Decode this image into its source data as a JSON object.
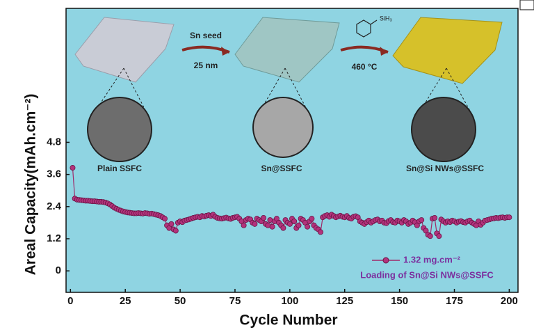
{
  "chart_data": {
    "type": "line",
    "xlabel": "Cycle Number",
    "ylabel": "Areal Capacity(mAh.cm⁻²)",
    "annotations": [
      "Sn seed",
      "25 nm",
      "SiH₃",
      "460 °C",
      "Plain SSFC",
      "Sn@SSFC",
      "Sn@Si NWs@SSFC",
      "Loading of Sn@Si NWs@SSFC"
    ],
    "xlim": [
      -2,
      204
    ],
    "ylim": [
      -0.8,
      9.8
    ],
    "xticks": [
      0,
      25,
      50,
      75,
      100,
      125,
      150,
      175,
      200
    ],
    "yticks": [
      0,
      1.2,
      2.4,
      3.6,
      4.8
    ],
    "grid": false,
    "x": [
      1,
      2,
      3,
      4,
      5,
      6,
      7,
      8,
      9,
      10,
      11,
      12,
      13,
      14,
      15,
      16,
      17,
      18,
      19,
      20,
      21,
      22,
      23,
      24,
      25,
      26,
      27,
      28,
      29,
      30,
      31,
      32,
      33,
      34,
      35,
      36,
      37,
      38,
      39,
      40,
      41,
      42,
      43,
      44,
      45,
      46,
      47,
      48,
      49,
      50,
      51,
      52,
      53,
      54,
      55,
      56,
      57,
      58,
      59,
      60,
      61,
      62,
      63,
      64,
      65,
      66,
      67,
      68,
      69,
      70,
      71,
      72,
      73,
      74,
      75,
      76,
      77,
      78,
      79,
      80,
      81,
      82,
      83,
      84,
      85,
      86,
      87,
      88,
      89,
      90,
      91,
      92,
      93,
      94,
      95,
      96,
      97,
      98,
      99,
      100,
      101,
      102,
      103,
      104,
      105,
      106,
      107,
      108,
      109,
      110,
      111,
      112,
      113,
      114,
      115,
      116,
      117,
      118,
      119,
      120,
      121,
      122,
      123,
      124,
      125,
      126,
      127,
      128,
      129,
      130,
      131,
      132,
      133,
      134,
      135,
      136,
      137,
      138,
      139,
      140,
      141,
      142,
      143,
      144,
      145,
      146,
      147,
      148,
      149,
      150,
      151,
      152,
      153,
      154,
      155,
      156,
      157,
      158,
      159,
      160,
      161,
      162,
      163,
      164,
      165,
      166,
      167,
      168,
      169,
      170,
      171,
      172,
      173,
      174,
      175,
      176,
      177,
      178,
      179,
      180,
      181,
      182,
      183,
      184,
      185,
      186,
      187,
      188,
      189,
      190,
      191,
      192,
      193,
      194,
      195,
      196,
      197,
      198,
      199,
      200
    ],
    "series": [
      {
        "name": "1.32 mg.cm⁻²",
        "color": "#b2337c",
        "line_color": "#a02a6a",
        "values": [
          3.85,
          2.7,
          2.66,
          2.65,
          2.64,
          2.63,
          2.62,
          2.62,
          2.61,
          2.6,
          2.6,
          2.59,
          2.58,
          2.58,
          2.57,
          2.55,
          2.52,
          2.48,
          2.42,
          2.36,
          2.32,
          2.28,
          2.25,
          2.22,
          2.2,
          2.18,
          2.17,
          2.16,
          2.15,
          2.15,
          2.16,
          2.15,
          2.14,
          2.16,
          2.15,
          2.13,
          2.14,
          2.12,
          2.1,
          2.08,
          2.05,
          2.0,
          1.95,
          1.7,
          1.6,
          1.75,
          1.55,
          1.5,
          1.8,
          1.85,
          1.82,
          1.88,
          1.9,
          1.92,
          1.95,
          1.98,
          2.0,
          2.02,
          2.0,
          2.05,
          2.03,
          2.06,
          2.08,
          2.05,
          2.1,
          2.02,
          1.98,
          1.96,
          1.95,
          1.97,
          1.99,
          1.96,
          1.94,
          1.98,
          2.0,
          2.02,
          1.95,
          1.85,
          1.7,
          1.9,
          1.95,
          1.92,
          1.8,
          1.75,
          1.95,
          1.9,
          1.85,
          1.98,
          1.75,
          1.7,
          1.9,
          1.65,
          1.85,
          1.95,
          1.8,
          1.7,
          1.6,
          1.9,
          1.8,
          1.75,
          1.95,
          1.85,
          1.6,
          1.7,
          1.95,
          1.9,
          1.8,
          1.65,
          1.85,
          1.95,
          1.7,
          1.6,
          1.55,
          1.45,
          2.0,
          2.05,
          2.08,
          2.02,
          2.1,
          2.05,
          2.0,
          2.03,
          2.06,
          2.02,
          2.0,
          2.05,
          1.98,
          1.95,
          2.02,
          2.04,
          2.0,
          1.85,
          1.8,
          1.75,
          1.82,
          1.88,
          1.8,
          1.85,
          1.9,
          1.92,
          1.85,
          1.88,
          1.8,
          1.78,
          1.86,
          1.9,
          1.82,
          1.8,
          1.88,
          1.85,
          1.8,
          1.9,
          1.85,
          1.75,
          1.8,
          1.88,
          1.82,
          1.7,
          1.85,
          1.9,
          1.6,
          1.5,
          1.35,
          1.3,
          1.95,
          1.98,
          1.4,
          1.3,
          1.92,
          1.85,
          1.8,
          1.85,
          1.82,
          1.88,
          1.85,
          1.8,
          1.84,
          1.86,
          1.82,
          1.8,
          1.85,
          1.88,
          1.8,
          1.75,
          1.7,
          1.85,
          1.72,
          1.8,
          1.88,
          1.9,
          1.92,
          1.95,
          1.96,
          1.98,
          1.97,
          1.99,
          2.0,
          1.98,
          2.0,
          2.0
        ]
      }
    ]
  }
}
